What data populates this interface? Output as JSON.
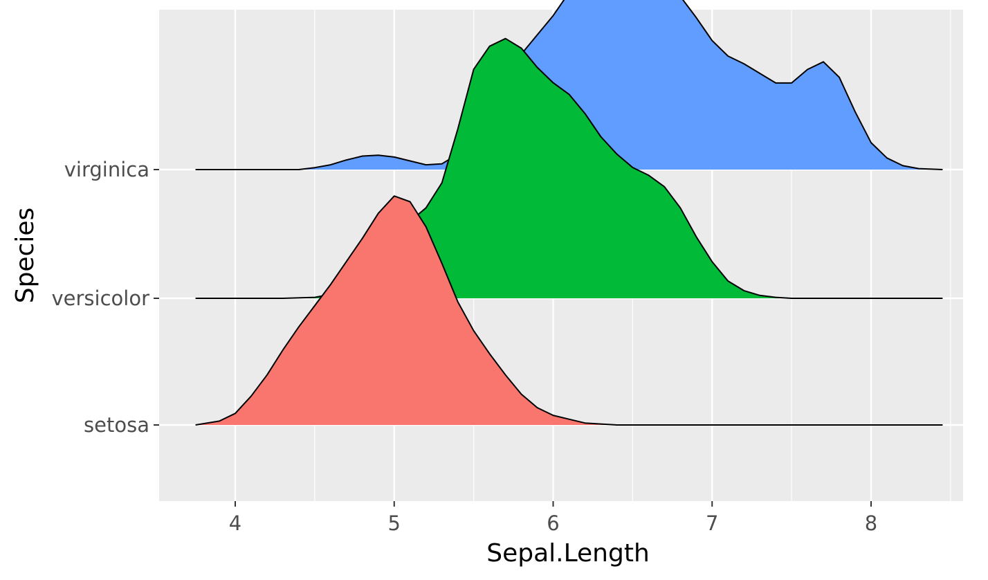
{
  "chart_data": {
    "type": "ridgeline",
    "title": "",
    "xlabel": "Sepal.Length",
    "ylabel": "Species",
    "xlim": [
      3.5,
      8.5
    ],
    "x_ticks": [
      4,
      5,
      6,
      7,
      8
    ],
    "grid": true,
    "legend": "none",
    "colors": {
      "panel_bg": "#ebebeb",
      "grid": "#ffffff",
      "outline": "#000000"
    },
    "series": [
      {
        "name": "setosa",
        "color": "#f8766d",
        "points": [
          [
            3.75,
            0.0
          ],
          [
            3.9,
            0.02
          ],
          [
            4.0,
            0.06
          ],
          [
            4.1,
            0.15
          ],
          [
            4.2,
            0.26
          ],
          [
            4.3,
            0.39
          ],
          [
            4.4,
            0.51
          ],
          [
            4.5,
            0.62
          ],
          [
            4.6,
            0.73
          ],
          [
            4.7,
            0.85
          ],
          [
            4.8,
            0.97
          ],
          [
            4.9,
            1.1
          ],
          [
            5.0,
            1.19
          ],
          [
            5.1,
            1.16
          ],
          [
            5.2,
            1.03
          ],
          [
            5.3,
            0.84
          ],
          [
            5.4,
            0.64
          ],
          [
            5.5,
            0.49
          ],
          [
            5.6,
            0.37
          ],
          [
            5.7,
            0.26
          ],
          [
            5.8,
            0.16
          ],
          [
            5.9,
            0.09
          ],
          [
            6.0,
            0.05
          ],
          [
            6.1,
            0.03
          ],
          [
            6.2,
            0.01
          ],
          [
            6.3,
            0.005
          ],
          [
            6.4,
            0.0
          ],
          [
            8.45,
            0.0
          ]
        ]
      },
      {
        "name": "versicolor",
        "color": "#00ba38",
        "points": [
          [
            3.75,
            0.0
          ],
          [
            4.3,
            0.0
          ],
          [
            4.5,
            0.005
          ],
          [
            4.6,
            0.02
          ],
          [
            4.7,
            0.06
          ],
          [
            4.8,
            0.13
          ],
          [
            4.9,
            0.22
          ],
          [
            5.0,
            0.32
          ],
          [
            5.1,
            0.4
          ],
          [
            5.2,
            0.47
          ],
          [
            5.3,
            0.6
          ],
          [
            5.4,
            0.88
          ],
          [
            5.5,
            1.19
          ],
          [
            5.6,
            1.31
          ],
          [
            5.7,
            1.35
          ],
          [
            5.8,
            1.3
          ],
          [
            5.9,
            1.2
          ],
          [
            6.0,
            1.12
          ],
          [
            6.1,
            1.06
          ],
          [
            6.2,
            0.96
          ],
          [
            6.3,
            0.84
          ],
          [
            6.4,
            0.75
          ],
          [
            6.5,
            0.68
          ],
          [
            6.6,
            0.64
          ],
          [
            6.7,
            0.58
          ],
          [
            6.8,
            0.47
          ],
          [
            6.9,
            0.32
          ],
          [
            7.0,
            0.19
          ],
          [
            7.1,
            0.09
          ],
          [
            7.2,
            0.04
          ],
          [
            7.3,
            0.015
          ],
          [
            7.4,
            0.005
          ],
          [
            7.5,
            0.0
          ],
          [
            8.45,
            0.0
          ]
        ]
      },
      {
        "name": "virginica",
        "color": "#619cff",
        "points": [
          [
            3.75,
            0.0
          ],
          [
            4.4,
            0.0
          ],
          [
            4.5,
            0.01
          ],
          [
            4.6,
            0.025
          ],
          [
            4.7,
            0.05
          ],
          [
            4.8,
            0.07
          ],
          [
            4.9,
            0.075
          ],
          [
            5.0,
            0.065
          ],
          [
            5.1,
            0.045
          ],
          [
            5.2,
            0.025
          ],
          [
            5.3,
            0.03
          ],
          [
            5.4,
            0.08
          ],
          [
            5.5,
            0.2
          ],
          [
            5.6,
            0.35
          ],
          [
            5.7,
            0.49
          ],
          [
            5.8,
            0.6
          ],
          [
            5.9,
            0.7
          ],
          [
            6.0,
            0.8
          ],
          [
            6.1,
            0.92
          ],
          [
            6.2,
            1.1
          ],
          [
            6.3,
            1.23
          ],
          [
            6.4,
            1.28
          ],
          [
            6.5,
            1.23
          ],
          [
            6.6,
            1.12
          ],
          [
            6.7,
            1.0
          ],
          [
            6.8,
            0.9
          ],
          [
            6.9,
            0.79
          ],
          [
            7.0,
            0.67
          ],
          [
            7.1,
            0.59
          ],
          [
            7.2,
            0.55
          ],
          [
            7.3,
            0.5
          ],
          [
            7.4,
            0.45
          ],
          [
            7.5,
            0.45
          ],
          [
            7.6,
            0.52
          ],
          [
            7.7,
            0.56
          ],
          [
            7.8,
            0.48
          ],
          [
            7.9,
            0.3
          ],
          [
            8.0,
            0.14
          ],
          [
            8.1,
            0.06
          ],
          [
            8.2,
            0.02
          ],
          [
            8.3,
            0.005
          ],
          [
            8.45,
            0.0
          ]
        ]
      }
    ]
  }
}
